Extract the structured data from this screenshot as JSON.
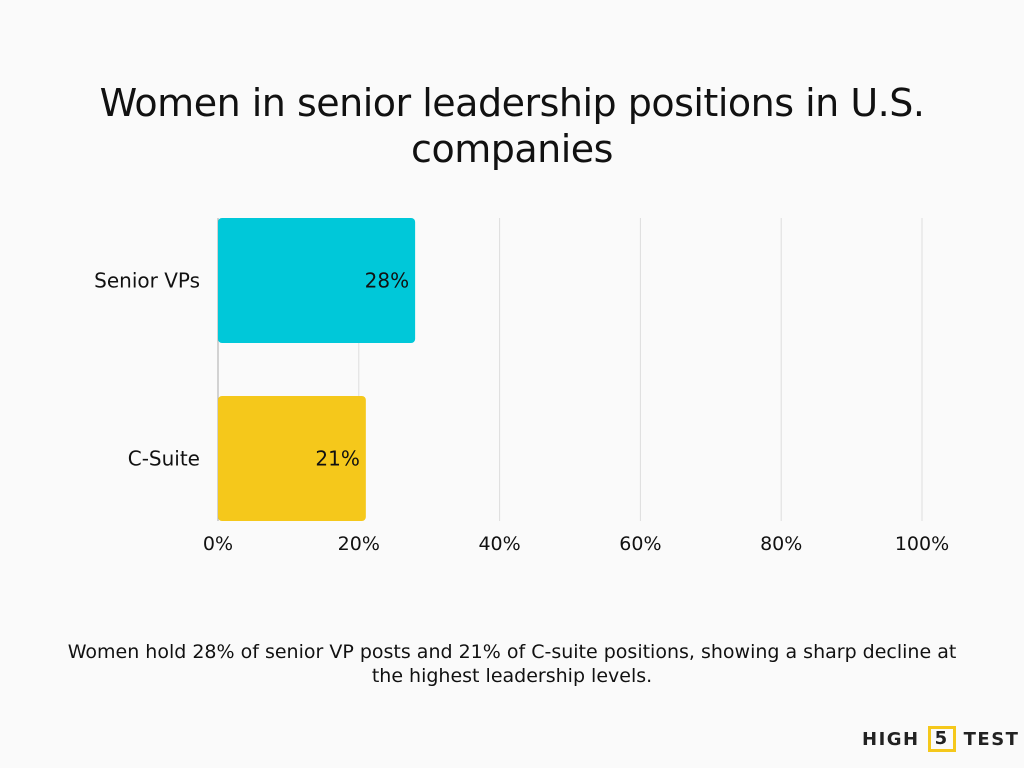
{
  "chart_data": {
    "type": "bar",
    "orientation": "horizontal",
    "title": "Women in senior leadership positions in U.S. companies",
    "categories": [
      "Senior VPs",
      "C-Suite"
    ],
    "values": [
      28,
      21
    ],
    "data_labels": [
      "28%",
      "21%"
    ],
    "colors": [
      "#00c8d9",
      "#f5c81b"
    ],
    "xlim": [
      0,
      100
    ],
    "x_ticks": [
      0,
      20,
      40,
      60,
      80,
      100
    ],
    "x_tick_labels": [
      "0%",
      "20%",
      "40%",
      "60%",
      "80%",
      "100%"
    ],
    "grid": true,
    "xlabel": "",
    "ylabel": ""
  },
  "caption": "Women hold 28% of senior VP posts and 21% of C-suite positions, showing a sharp decline at the highest leadership levels.",
  "logo": {
    "left": "HIGH",
    "mid": "5",
    "right": "TEST"
  }
}
